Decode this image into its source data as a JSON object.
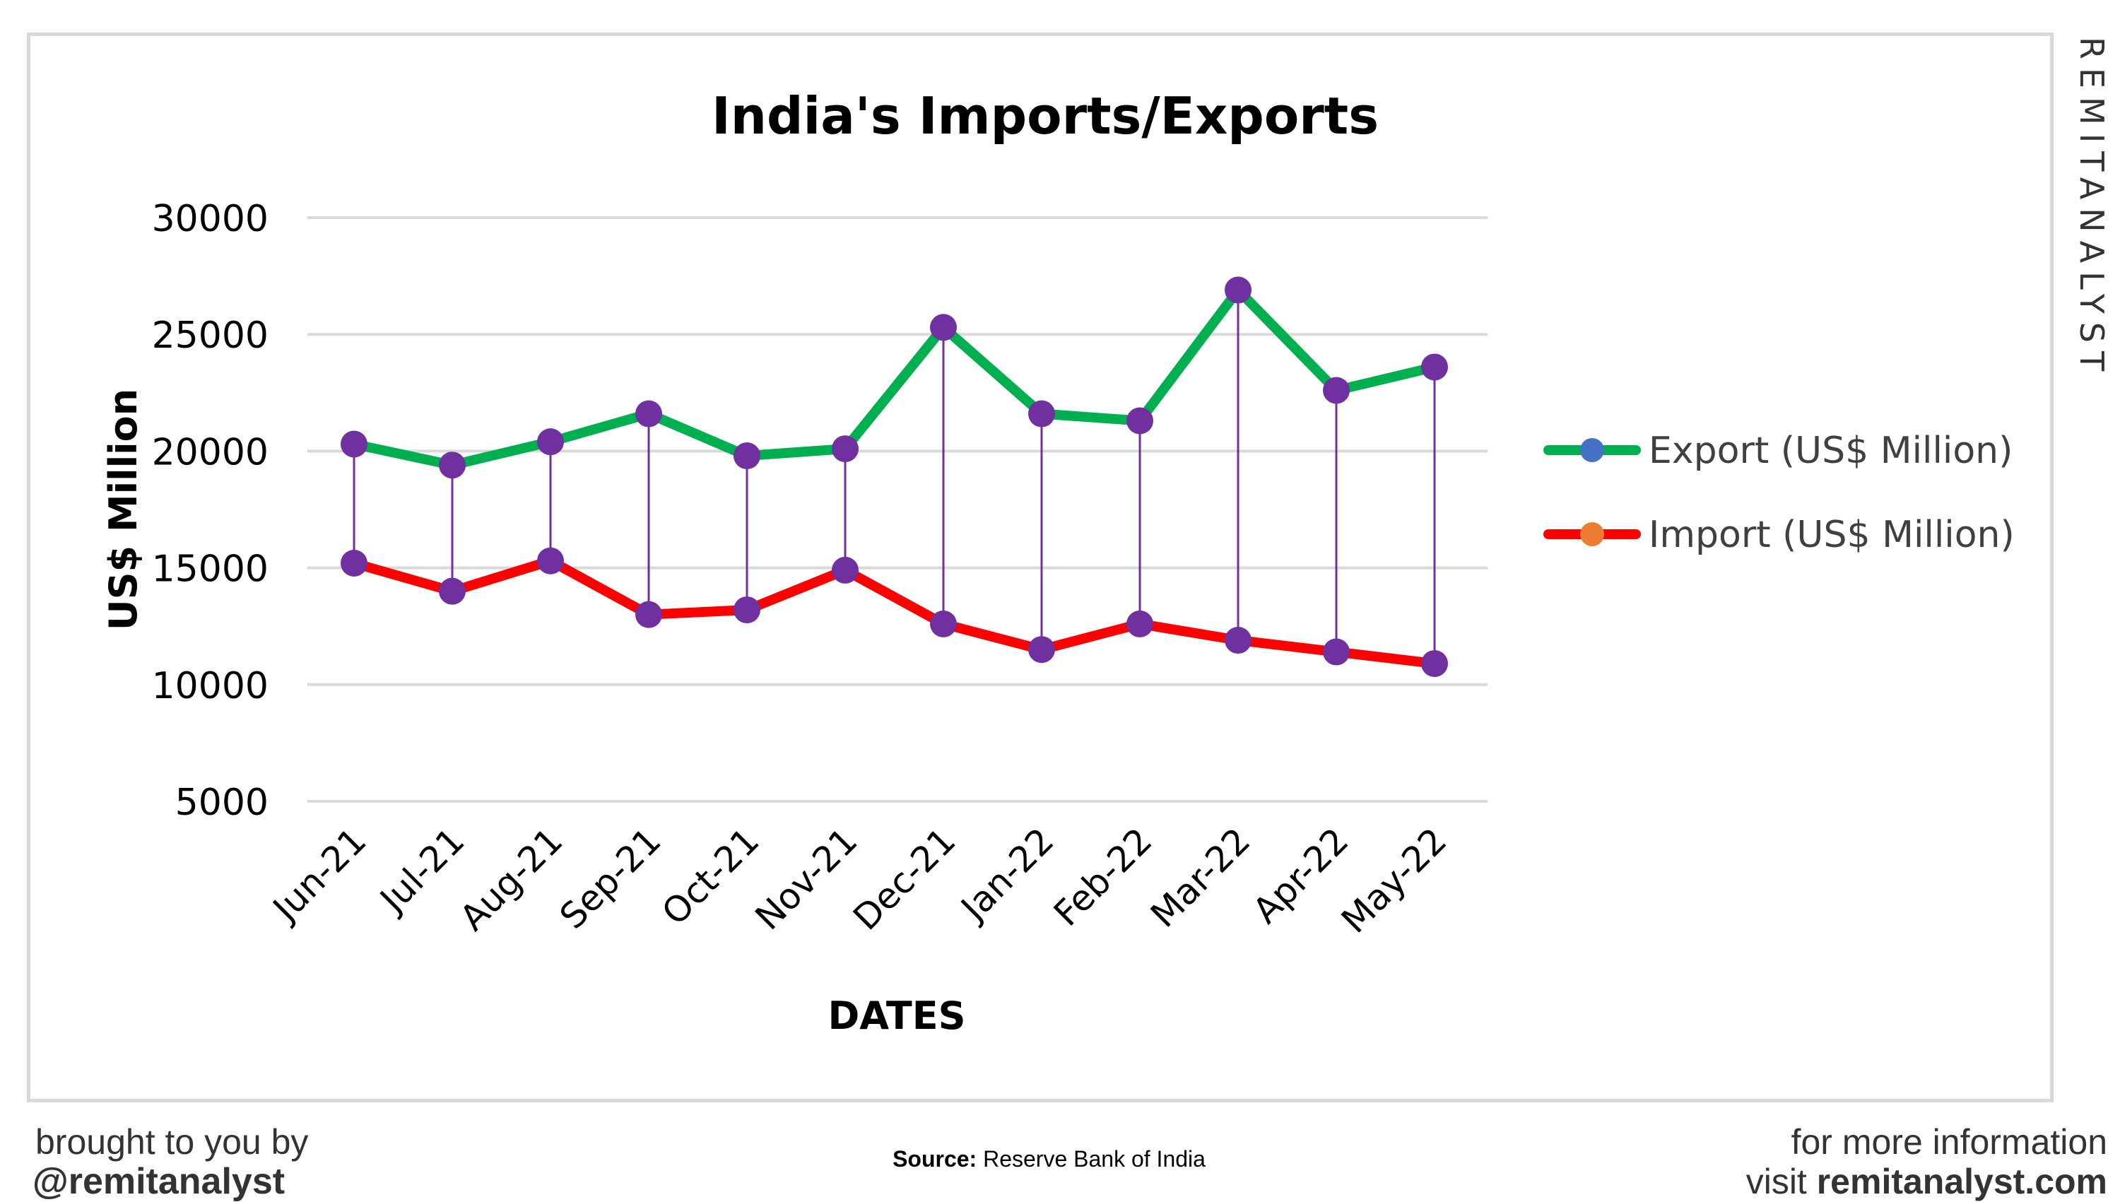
{
  "chart_data": {
    "type": "line",
    "title": "India's Imports/Exports",
    "xlabel": "DATES",
    "ylabel": "US$ Million",
    "categories": [
      "Jun-21",
      "Jul-21",
      "Aug-21",
      "Sep-21",
      "Oct-21",
      "Nov-21",
      "Dec-21",
      "Jan-22",
      "Feb-22",
      "Mar-22",
      "Apr-22",
      "May-22"
    ],
    "yticks": [
      "5000",
      "10000",
      "15000",
      "20000",
      "25000",
      "30000"
    ],
    "ylim": [
      5000,
      30000
    ],
    "grid": true,
    "legend_position": "right",
    "series": [
      {
        "name": "Export (US$ Million)",
        "color": "#00b050",
        "values": [
          20300,
          19400,
          20400,
          21600,
          19800,
          20100,
          25300,
          21600,
          21300,
          26900,
          22600,
          23600
        ]
      },
      {
        "name": "Import (US$ Million)",
        "color": "#ff0000",
        "values": [
          15200,
          14000,
          15300,
          13000,
          13200,
          14900,
          12600,
          11500,
          12600,
          11900,
          11400,
          10900
        ]
      }
    ],
    "marker_color": "#7030a0",
    "gap_line_color": "#7030a0"
  },
  "brand": "REMITANALYST",
  "footer": {
    "left_line1": "brought to you by",
    "left_line2": "@remitanalyst",
    "source_label": "Source:",
    "source_text": "Reserve Bank of India",
    "right_line1": "for more information",
    "right_line2_prefix": "visit ",
    "right_line2_site": "remitanalyst.com"
  }
}
